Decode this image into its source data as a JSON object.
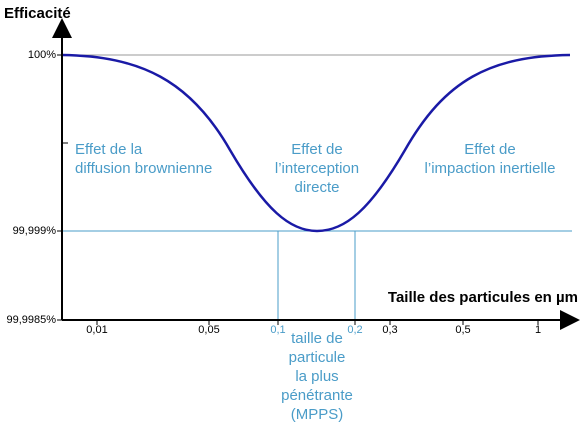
{
  "y_axis_label": "Efficacité",
  "x_axis_label": "Taille des particules en µm",
  "y_tick_labels": [
    "100%",
    "99,999%",
    "99,9985%"
  ],
  "x_tick_labels": [
    "0,01",
    "0,05",
    "0,1",
    "0,2",
    "0,3",
    "0,5",
    "1"
  ],
  "regions": [
    [
      "Effet de la",
      "diffusion brownienne"
    ],
    [
      "Effet de",
      "l’interception",
      "directe"
    ],
    [
      "Effet de",
      "l’impaction inertielle"
    ]
  ],
  "mpps_label": [
    "taille de",
    "particule",
    "la plus",
    "pénétrante",
    "(MPPS)"
  ]
}
